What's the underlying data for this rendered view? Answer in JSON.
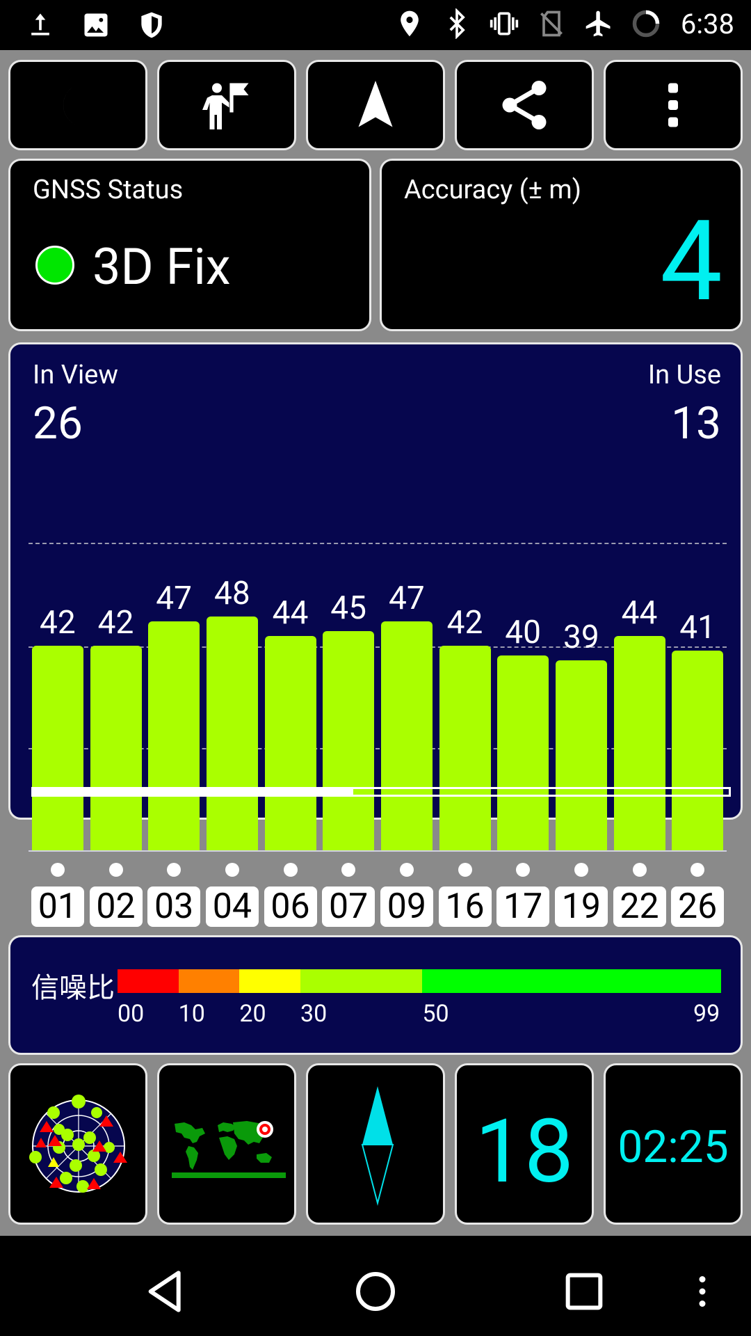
{
  "status_bar": {
    "time": "6:38",
    "left_icons": [
      "upload-icon",
      "image-icon",
      "shield-icon"
    ],
    "right_icons": [
      "location-icon",
      "bluetooth-icon",
      "vibrate-icon",
      "no-sim-icon",
      "airplane-icon",
      "battery-ring-icon"
    ]
  },
  "toolbar": {
    "buttons": [
      "night-mode-icon",
      "poi-flag-icon",
      "navigation-arrow-icon",
      "share-icon",
      "more-vert-icon"
    ]
  },
  "gnss_status": {
    "label": "GNSS Status",
    "value": "3D Fix",
    "indicator_color": "#00e600"
  },
  "accuracy": {
    "label": "Accuracy (± m)",
    "value": "4",
    "value_color": "#00f0f0"
  },
  "satellites": {
    "in_view_label": "In View",
    "in_view": "26",
    "in_use_label": "In Use",
    "in_use": "13",
    "bar_color": "#aaff00",
    "scroll_position": 0.46
  },
  "chart_data": {
    "type": "bar",
    "categories": [
      "01",
      "02",
      "03",
      "04",
      "06",
      "07",
      "09",
      "16",
      "17",
      "19",
      "22",
      "26"
    ],
    "values": [
      42,
      42,
      47,
      48,
      44,
      45,
      47,
      42,
      40,
      39,
      44,
      41
    ],
    "ylim": [
      0,
      50
    ]
  },
  "snr_legend": {
    "label": "信噪比",
    "segments": [
      {
        "from": 0,
        "to": 10,
        "color": "#ff0000"
      },
      {
        "from": 10,
        "to": 20,
        "color": "#ff8000"
      },
      {
        "from": 20,
        "to": 30,
        "color": "#ffff00"
      },
      {
        "from": 30,
        "to": 50,
        "color": "#aaff00"
      },
      {
        "from": 50,
        "to": 99,
        "color": "#00ff00"
      }
    ],
    "ticks": [
      "00",
      "10",
      "20",
      "30",
      "50",
      "99"
    ]
  },
  "bottom_tiles": {
    "sky_view": "sky-plot-icon",
    "world_map": "world-map-icon",
    "compass": "compass-needle-icon",
    "number": "18",
    "time": "02:25"
  },
  "nav_bar": [
    "back-icon",
    "home-icon",
    "recents-icon",
    "menu-icon"
  ]
}
